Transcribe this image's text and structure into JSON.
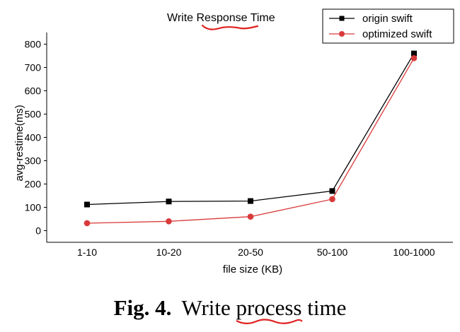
{
  "chart_data": {
    "type": "line",
    "title_parts": [
      "Write ",
      "Response",
      " Time"
    ],
    "xlabel": "file size (KB)",
    "ylabel": "avg-restime(ms)",
    "categories": [
      "1-10",
      "10-20",
      "20-50",
      "50-100",
      "100-1000"
    ],
    "yticks": [
      0,
      100,
      200,
      300,
      400,
      500,
      600,
      700,
      800
    ],
    "ylim": [
      -50,
      850
    ],
    "legend_position": "top-right",
    "series": [
      {
        "name": "origin swift",
        "values": [
          112,
          125,
          127,
          170,
          760
        ],
        "color": "#000000",
        "marker": "square"
      },
      {
        "name": "optimized swift",
        "values": [
          32,
          40,
          60,
          135,
          740
        ],
        "color": "#d93a3a",
        "marker": "circle"
      }
    ],
    "highlight_color": "#e02020"
  },
  "caption": {
    "fig_label": "Fig. 4.",
    "text_before": "Write ",
    "highlight": "process",
    "text_after": " time"
  }
}
